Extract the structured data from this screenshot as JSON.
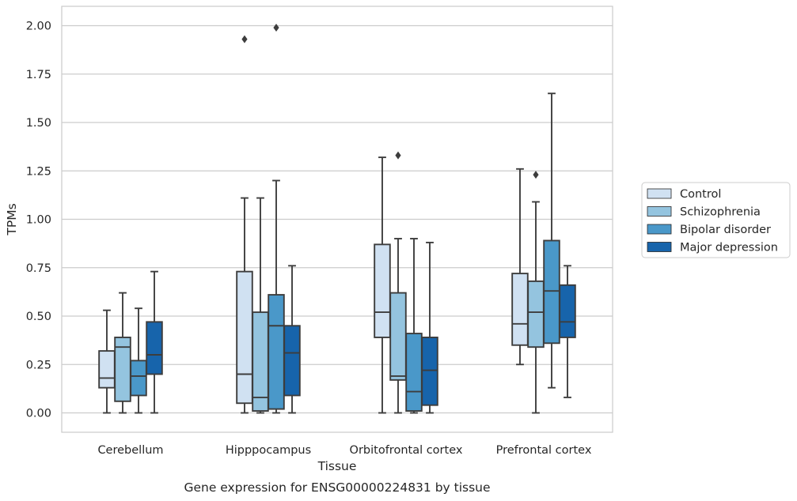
{
  "chart_data": {
    "type": "box",
    "caption": "Gene expression for ENSG00000224831 by tissue",
    "xlabel": "Tissue",
    "ylabel": "TPMs",
    "ylim": [
      -0.1,
      2.1
    ],
    "yticks": [
      0.0,
      0.25,
      0.5,
      0.75,
      1.0,
      1.25,
      1.5,
      1.75,
      2.0
    ],
    "ytick_labels": [
      "0.00",
      "0.25",
      "0.50",
      "0.75",
      "1.00",
      "1.25",
      "1.50",
      "1.75",
      "2.00"
    ],
    "grid": "horizontal",
    "legend_position": "right",
    "categories": [
      "Cerebellum",
      "Hipppocampus",
      "Orbitofrontal cortex",
      "Prefrontal cortex"
    ],
    "series": [
      {
        "name": "Control",
        "color": "#d0e1f2",
        "boxes": [
          {
            "whislo": 0.0,
            "q1": 0.13,
            "med": 0.18,
            "q3": 0.32,
            "whishi": 0.53,
            "fliers": []
          },
          {
            "whislo": 0.0,
            "q1": 0.05,
            "med": 0.2,
            "q3": 0.73,
            "whishi": 1.11,
            "fliers": [
              1.93
            ]
          },
          {
            "whislo": 0.0,
            "q1": 0.39,
            "med": 0.52,
            "q3": 0.87,
            "whishi": 1.32,
            "fliers": []
          },
          {
            "whislo": 0.25,
            "q1": 0.35,
            "med": 0.46,
            "q3": 0.72,
            "whishi": 1.26,
            "fliers": []
          }
        ]
      },
      {
        "name": "Schizophrenia",
        "color": "#94c4df",
        "boxes": [
          {
            "whislo": 0.0,
            "q1": 0.06,
            "med": 0.34,
            "q3": 0.39,
            "whishi": 0.62,
            "fliers": []
          },
          {
            "whislo": 0.0,
            "q1": 0.01,
            "med": 0.08,
            "q3": 0.52,
            "whishi": 1.11,
            "fliers": []
          },
          {
            "whislo": 0.0,
            "q1": 0.17,
            "med": 0.19,
            "q3": 0.62,
            "whishi": 0.9,
            "fliers": [
              1.33
            ]
          },
          {
            "whislo": 0.0,
            "q1": 0.34,
            "med": 0.52,
            "q3": 0.68,
            "whishi": 1.09,
            "fliers": [
              1.23
            ]
          }
        ]
      },
      {
        "name": "Bipolar disorder",
        "color": "#4a98c9",
        "boxes": [
          {
            "whislo": 0.0,
            "q1": 0.09,
            "med": 0.19,
            "q3": 0.27,
            "whishi": 0.54,
            "fliers": []
          },
          {
            "whislo": 0.0,
            "q1": 0.02,
            "med": 0.45,
            "q3": 0.61,
            "whishi": 1.2,
            "fliers": [
              1.99
            ]
          },
          {
            "whislo": 0.0,
            "q1": 0.01,
            "med": 0.11,
            "q3": 0.41,
            "whishi": 0.9,
            "fliers": []
          },
          {
            "whislo": 0.13,
            "q1": 0.36,
            "med": 0.63,
            "q3": 0.89,
            "whishi": 1.65,
            "fliers": []
          }
        ]
      },
      {
        "name": "Major depression",
        "color": "#1764ab",
        "boxes": [
          {
            "whislo": 0.0,
            "q1": 0.2,
            "med": 0.3,
            "q3": 0.47,
            "whishi": 0.73,
            "fliers": []
          },
          {
            "whislo": 0.0,
            "q1": 0.09,
            "med": 0.31,
            "q3": 0.45,
            "whishi": 0.76,
            "fliers": []
          },
          {
            "whislo": 0.0,
            "q1": 0.04,
            "med": 0.22,
            "q3": 0.39,
            "whishi": 0.88,
            "fliers": []
          },
          {
            "whislo": 0.08,
            "q1": 0.39,
            "med": 0.47,
            "q3": 0.66,
            "whishi": 0.76,
            "fliers": []
          }
        ]
      }
    ]
  }
}
